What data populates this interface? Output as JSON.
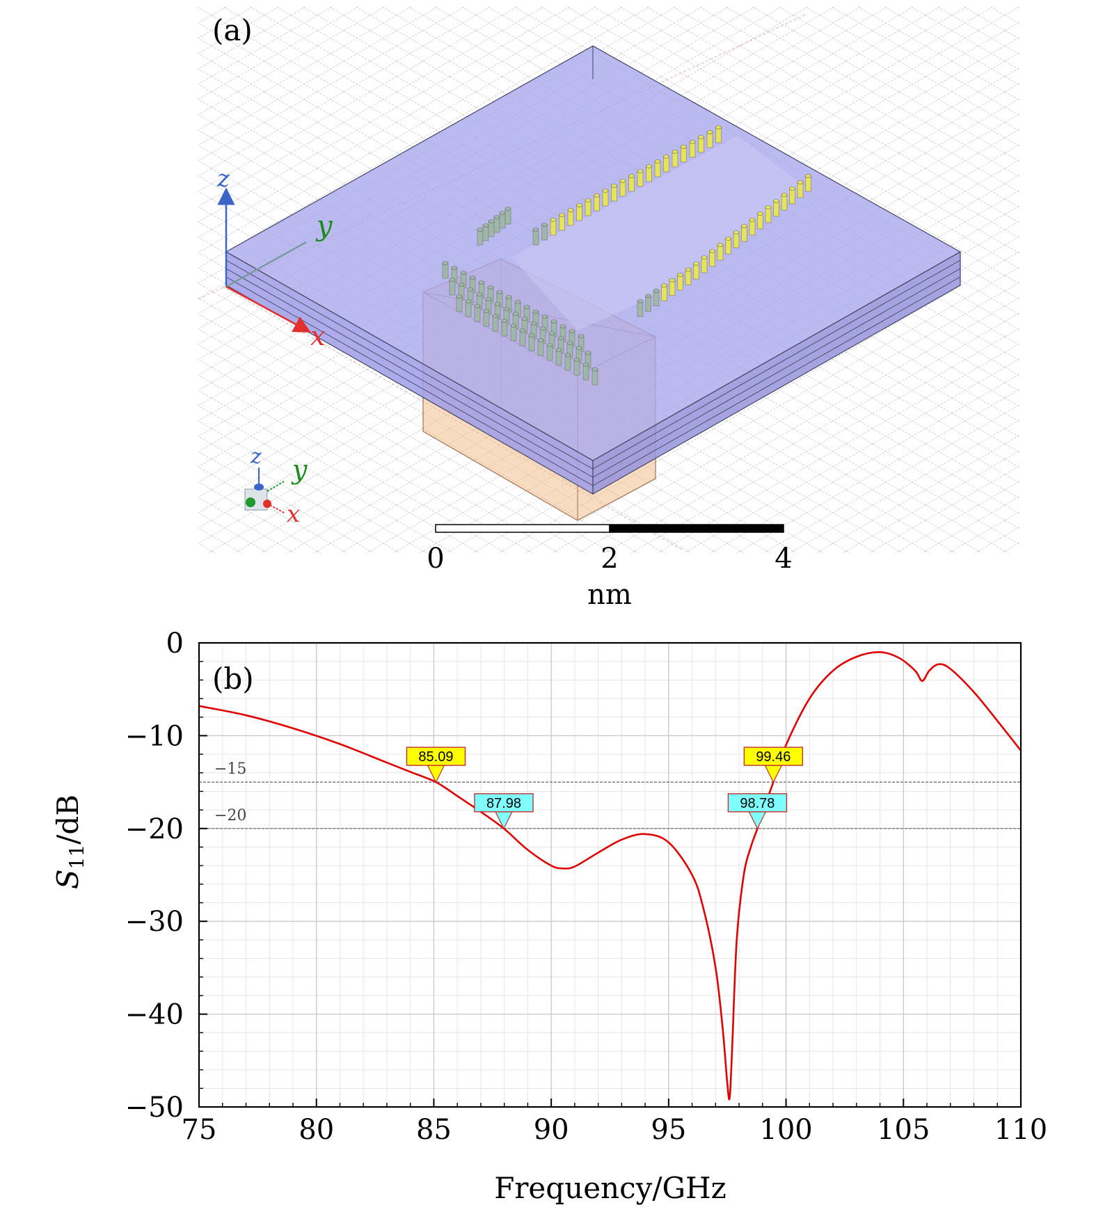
{
  "panel_a": {
    "label": "(a)",
    "axes_main": {
      "z": "z",
      "y": "y",
      "x": "x"
    },
    "axes_triad": {
      "z": "z",
      "y": "y",
      "x": "x"
    },
    "scale_bar": {
      "ticks": [
        "0",
        "2",
        "4"
      ],
      "unit": "nm"
    },
    "colors": {
      "substrate": "#a9a8ec",
      "metal_box": "#f3c08f",
      "vias_yellow": "#e6e25a",
      "vias_gray": "#9fb7a8"
    }
  },
  "chart_data": {
    "type": "line",
    "panel_label": "(b)",
    "xlabel": "Frequency/GHz",
    "ylabel": "S11/dB",
    "ylabel_main": "S",
    "ylabel_sub": "11",
    "ylabel_unit": "/dB",
    "xlim": [
      75,
      110
    ],
    "ylim": [
      -50,
      0
    ],
    "xticks": [
      75,
      80,
      85,
      90,
      95,
      100,
      105,
      110
    ],
    "yticks": [
      0,
      -10,
      -20,
      -30,
      -40,
      -50
    ],
    "ytick_labels": [
      "0",
      "−10",
      "−20",
      "−30",
      "−40",
      "−50"
    ],
    "grid": true,
    "line_color": "#e00000",
    "series": [
      {
        "x": [
          75,
          77,
          79,
          81,
          83,
          84,
          85.09,
          86,
          87,
          87.98,
          89,
          90,
          90.5,
          91,
          92,
          93,
          94,
          95,
          96,
          96.5,
          97,
          97.3,
          97.5,
          97.6,
          97.7,
          97.9,
          98.2,
          98.5,
          98.78,
          99.1,
          99.46,
          100,
          101,
          102,
          103,
          104,
          104.8,
          105.5,
          105.8,
          106.1,
          106.5,
          107,
          108,
          109,
          110
        ],
        "y": [
          -6.8,
          -7.8,
          -9.2,
          -10.9,
          -12.9,
          -13.9,
          -15,
          -16.5,
          -18.2,
          -20,
          -22.3,
          -24,
          -24.3,
          -24.1,
          -22.6,
          -21.2,
          -20.6,
          -21.5,
          -25,
          -28.8,
          -35,
          -41.5,
          -47.5,
          -49,
          -44,
          -32,
          -25,
          -22,
          -20,
          -17.5,
          -15,
          -11,
          -6,
          -3,
          -1.5,
          -1,
          -1.6,
          -3,
          -4.1,
          -3,
          -2.3,
          -2.8,
          -5.3,
          -8.4,
          -11.6
        ]
      }
    ],
    "reference_lines": [
      {
        "y": -15,
        "label": "−15"
      },
      {
        "y": -20,
        "label": "−20"
      }
    ],
    "markers": [
      {
        "x": 85.09,
        "y": -15,
        "label": "85.09",
        "color": "#ffff00"
      },
      {
        "x": 87.98,
        "y": -20,
        "label": "87.98",
        "color": "#80ffff"
      },
      {
        "x": 99.46,
        "y": -15,
        "label": "99.46",
        "color": "#ffff00"
      },
      {
        "x": 98.78,
        "y": -20,
        "label": "98.78",
        "color": "#80ffff"
      }
    ]
  }
}
